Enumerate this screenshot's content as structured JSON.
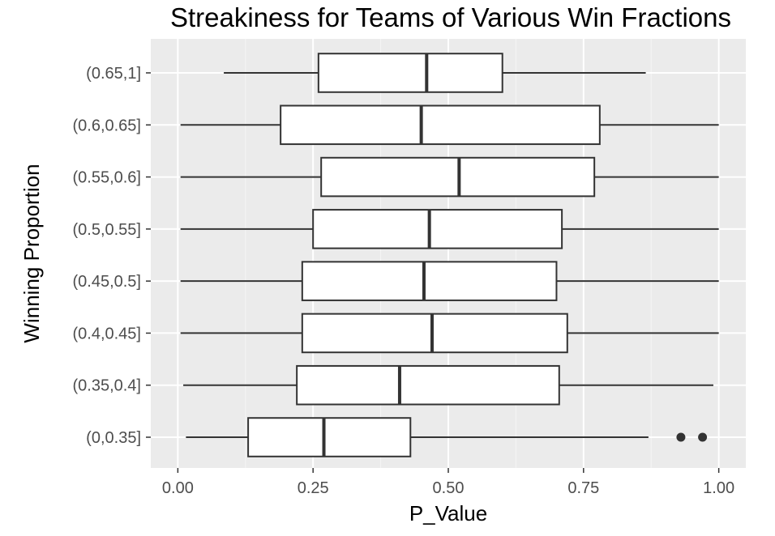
{
  "chart_data": {
    "type": "boxplot",
    "orientation": "horizontal",
    "title": "Streakiness for Teams of Various Win Fractions",
    "xlabel": "P_Value",
    "ylabel": "Winning Proportion",
    "xlim": [
      -0.05,
      1.05
    ],
    "x_ticks": [
      0.0,
      0.25,
      0.5,
      0.75,
      1.0
    ],
    "x_tick_labels": [
      "0.00",
      "0.25",
      "0.50",
      "0.75",
      "1.00"
    ],
    "grid": true,
    "legend": "none",
    "categories": [
      "(0,0.35]",
      "(0.35,0.4]",
      "(0.4,0.45]",
      "(0.45,0.5]",
      "(0.5,0.55]",
      "(0.55,0.6]",
      "(0.6,0.65]",
      "(0.65,1]"
    ],
    "boxes": [
      {
        "category": "(0,0.35]",
        "whisker_low": 0.015,
        "q1": 0.13,
        "median": 0.27,
        "q3": 0.43,
        "whisker_high": 0.87,
        "outliers": [
          0.93,
          0.97
        ]
      },
      {
        "category": "(0.35,0.4]",
        "whisker_low": 0.01,
        "q1": 0.22,
        "median": 0.41,
        "q3": 0.705,
        "whisker_high": 0.99,
        "outliers": []
      },
      {
        "category": "(0.4,0.45]",
        "whisker_low": 0.005,
        "q1": 0.23,
        "median": 0.47,
        "q3": 0.72,
        "whisker_high": 1.0,
        "outliers": []
      },
      {
        "category": "(0.45,0.5]",
        "whisker_low": 0.005,
        "q1": 0.23,
        "median": 0.455,
        "q3": 0.7,
        "whisker_high": 1.0,
        "outliers": []
      },
      {
        "category": "(0.5,0.55]",
        "whisker_low": 0.005,
        "q1": 0.25,
        "median": 0.465,
        "q3": 0.71,
        "whisker_high": 1.0,
        "outliers": []
      },
      {
        "category": "(0.55,0.6]",
        "whisker_low": 0.005,
        "q1": 0.265,
        "median": 0.52,
        "q3": 0.77,
        "whisker_high": 1.0,
        "outliers": []
      },
      {
        "category": "(0.6,0.65]",
        "whisker_low": 0.005,
        "q1": 0.19,
        "median": 0.45,
        "q3": 0.78,
        "whisker_high": 1.0,
        "outliers": []
      },
      {
        "category": "(0.65,1]",
        "whisker_low": 0.085,
        "q1": 0.26,
        "median": 0.46,
        "q3": 0.6,
        "whisker_high": 0.865,
        "outliers": []
      }
    ],
    "colors": {
      "panel_background": "#ebebeb",
      "grid_major": "#ffffff",
      "grid_minor": "#f5f5f5",
      "box_fill": "#ffffff",
      "box_stroke": "#333333",
      "outlier": "#333333",
      "tick_label": "#4d4d4d"
    }
  }
}
